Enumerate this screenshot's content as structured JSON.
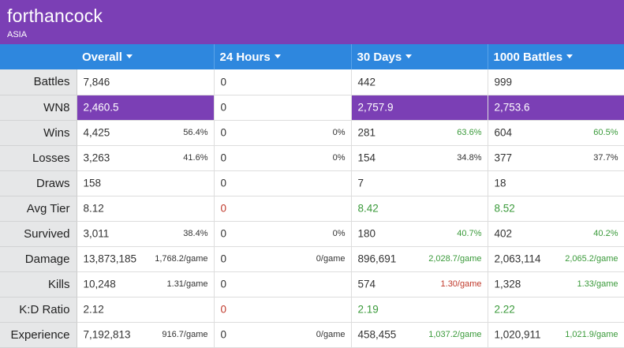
{
  "player": {
    "name": "forthancock",
    "region": "ASIA"
  },
  "colors": {
    "header_bg": "#7b3fb5",
    "column_header_bg": "#2e87de",
    "good": "#3a9a3a",
    "bad": "#c0392b",
    "wn8_cell": "#7b3fb5"
  },
  "columns": [
    "Overall",
    "24 Hours",
    "30 Days",
    "1000 Battles"
  ],
  "rows": {
    "battles": {
      "label": "Battles",
      "cells": [
        {
          "v": "7,846"
        },
        {
          "v": "0"
        },
        {
          "v": "442"
        },
        {
          "v": "999"
        }
      ]
    },
    "wn8": {
      "label": "WN8",
      "cells": [
        {
          "v": "2,460.5"
        },
        {
          "v": "0"
        },
        {
          "v": "2,757.9"
        },
        {
          "v": "2,753.6"
        }
      ]
    },
    "wins": {
      "label": "Wins",
      "cells": [
        {
          "v": "4,425",
          "s": "56.4%"
        },
        {
          "v": "0",
          "s": "0%"
        },
        {
          "v": "281",
          "s": "63.6%"
        },
        {
          "v": "604",
          "s": "60.5%"
        }
      ]
    },
    "losses": {
      "label": "Losses",
      "cells": [
        {
          "v": "3,263",
          "s": "41.6%"
        },
        {
          "v": "0",
          "s": "0%"
        },
        {
          "v": "154",
          "s": "34.8%"
        },
        {
          "v": "377",
          "s": "37.7%"
        }
      ]
    },
    "draws": {
      "label": "Draws",
      "cells": [
        {
          "v": "158"
        },
        {
          "v": "0"
        },
        {
          "v": "7"
        },
        {
          "v": "18"
        }
      ]
    },
    "avg_tier": {
      "label": "Avg Tier",
      "cells": [
        {
          "v": "8.12"
        },
        {
          "v": "0"
        },
        {
          "v": "8.42"
        },
        {
          "v": "8.52"
        }
      ]
    },
    "survived": {
      "label": "Survived",
      "cells": [
        {
          "v": "3,011",
          "s": "38.4%"
        },
        {
          "v": "0",
          "s": "0%"
        },
        {
          "v": "180",
          "s": "40.7%"
        },
        {
          "v": "402",
          "s": "40.2%"
        }
      ]
    },
    "damage": {
      "label": "Damage",
      "cells": [
        {
          "v": "13,873,185",
          "s": "1,768.2/game"
        },
        {
          "v": "0",
          "s": "0/game"
        },
        {
          "v": "896,691",
          "s": "2,028.7/game"
        },
        {
          "v": "2,063,114",
          "s": "2,065.2/game"
        }
      ]
    },
    "kills": {
      "label": "Kills",
      "cells": [
        {
          "v": "10,248",
          "s": "1.31/game"
        },
        {
          "v": "0"
        },
        {
          "v": "574",
          "s": "1.30/game"
        },
        {
          "v": "1,328",
          "s": "1.33/game"
        }
      ]
    },
    "kd_ratio": {
      "label": "K:D Ratio",
      "cells": [
        {
          "v": "2.12"
        },
        {
          "v": "0"
        },
        {
          "v": "2.19"
        },
        {
          "v": "2.22"
        }
      ]
    },
    "experience": {
      "label": "Experience",
      "cells": [
        {
          "v": "7,192,813",
          "s": "916.7/game"
        },
        {
          "v": "0",
          "s": "0/game"
        },
        {
          "v": "458,455",
          "s": "1,037.2/game"
        },
        {
          "v": "1,020,911",
          "s": "1,021.9/game"
        }
      ]
    }
  }
}
